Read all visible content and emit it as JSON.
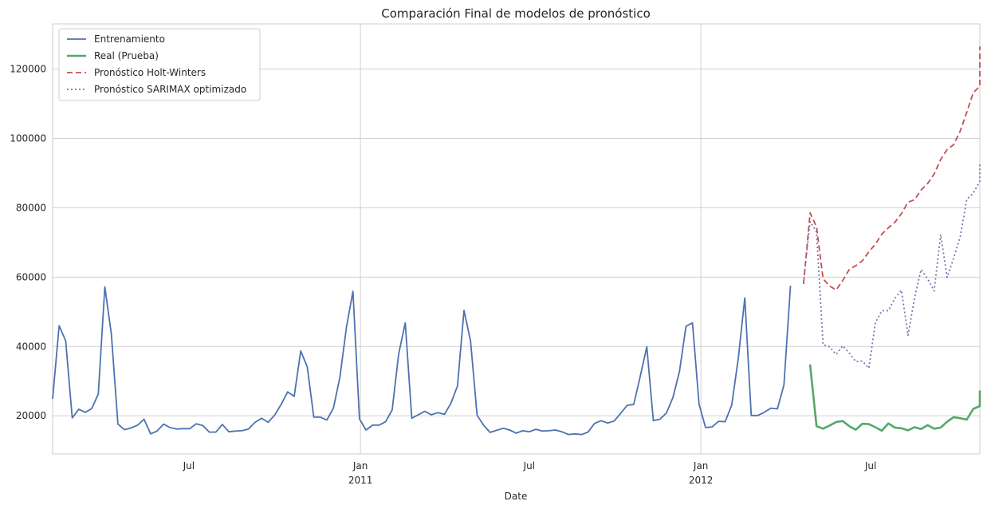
{
  "chart_data": {
    "type": "line",
    "title": "Comparación Final de modelos de pronóstico",
    "xlabel": "Date",
    "ylabel": "",
    "xlim": [
      "2010-02-05",
      "2012-10-26"
    ],
    "ylim": [
      9000,
      133000
    ],
    "grid": true,
    "legend_position": "top-left",
    "x_ticks": [
      {
        "date": "2010-07-01",
        "label": "Jul",
        "sublabel": "",
        "major": false
      },
      {
        "date": "2011-01-01",
        "label": "Jan",
        "sublabel": "2011",
        "major": true
      },
      {
        "date": "2011-07-01",
        "label": "Jul",
        "sublabel": "",
        "major": false
      },
      {
        "date": "2012-01-01",
        "label": "Jan",
        "sublabel": "2012",
        "major": true
      },
      {
        "date": "2012-07-01",
        "label": "Jul",
        "sublabel": "",
        "major": false
      }
    ],
    "y_ticks": [
      {
        "value": 20000,
        "label": "20000"
      },
      {
        "value": 40000,
        "label": "40000"
      },
      {
        "value": 60000,
        "label": "60000"
      },
      {
        "value": 80000,
        "label": "80000"
      },
      {
        "value": 100000,
        "label": "100000"
      },
      {
        "value": 120000,
        "label": "120000"
      }
    ],
    "series": [
      {
        "name": "Entrenamiento",
        "color": "#4c72b0",
        "style": "solid",
        "start": "2010-02-05",
        "step_days": 7,
        "values": [
          24900,
          46000,
          41600,
          19400,
          21900,
          21000,
          22100,
          26300,
          57200,
          43500,
          17600,
          16000,
          16500,
          17300,
          19000,
          14800,
          15600,
          17600,
          16600,
          16200,
          16300,
          16300,
          17700,
          17200,
          15300,
          15300,
          17500,
          15400,
          15600,
          15700,
          16200,
          18100,
          19300,
          18100,
          20200,
          23300,
          26900,
          25600,
          38700,
          34100,
          19600,
          19600,
          18800,
          22200,
          31200,
          45600,
          55900,
          19100,
          15900,
          17300,
          17300,
          18300,
          21700,
          37900,
          46800,
          19300,
          20300,
          21300,
          20300,
          20900,
          20400,
          23600,
          28600,
          50400,
          41600,
          20200,
          17300,
          15200,
          15800,
          16400,
          15900,
          15000,
          15700,
          15400,
          16100,
          15600,
          15700,
          15900,
          15400,
          14600,
          14800,
          14600,
          15300,
          17800,
          18600,
          17900,
          18500,
          20700,
          23000,
          23300,
          31400,
          39900,
          18600,
          19000,
          20800,
          25300,
          32800,
          45800,
          46800,
          23400,
          16600,
          16800,
          18400,
          18300,
          23100,
          36500,
          54000,
          20100,
          20100,
          21000,
          22200,
          22000,
          28900,
          57500
        ]
      },
      {
        "name": "Real (Prueba)",
        "color": "#55a868",
        "style": "solid",
        "start": "2012-04-27",
        "step_days": 7,
        "values": [
          34800,
          17000,
          16300,
          17200,
          18200,
          18500,
          17000,
          16000,
          17700,
          17600,
          16700,
          15700,
          17800,
          16600,
          16400,
          15800,
          16700,
          16200,
          17300,
          16300,
          16600,
          18300,
          19600,
          19300,
          18900,
          22000,
          22800,
          24300,
          27300
        ]
      },
      {
        "name": "Pronóstico Holt-Winters",
        "color": "#c44e52",
        "style": "dashed",
        "start": "2012-04-20",
        "step_days": 7,
        "values": [
          58000,
          78500,
          74500,
          59500,
          57400,
          56300,
          59000,
          62200,
          63300,
          64700,
          67300,
          69500,
          72400,
          74200,
          75800,
          78300,
          81600,
          82300,
          85100,
          87000,
          89700,
          93900,
          96800,
          98200,
          102100,
          107500,
          113200,
          115000,
          126500
        ]
      },
      {
        "name": "Pronóstico SARIMAX optimizado",
        "color": "#8172b3",
        "style": "dotted",
        "start": "2012-04-20",
        "step_days": 7,
        "values": [
          58500,
          76000,
          73000,
          40500,
          39900,
          37700,
          40200,
          38100,
          35600,
          35800,
          33700,
          46900,
          50300,
          50300,
          53900,
          56200,
          43200,
          54000,
          62200,
          59500,
          56000,
          72300,
          59900,
          65500,
          71600,
          82400,
          84200,
          87600,
          92500
        ]
      }
    ]
  }
}
